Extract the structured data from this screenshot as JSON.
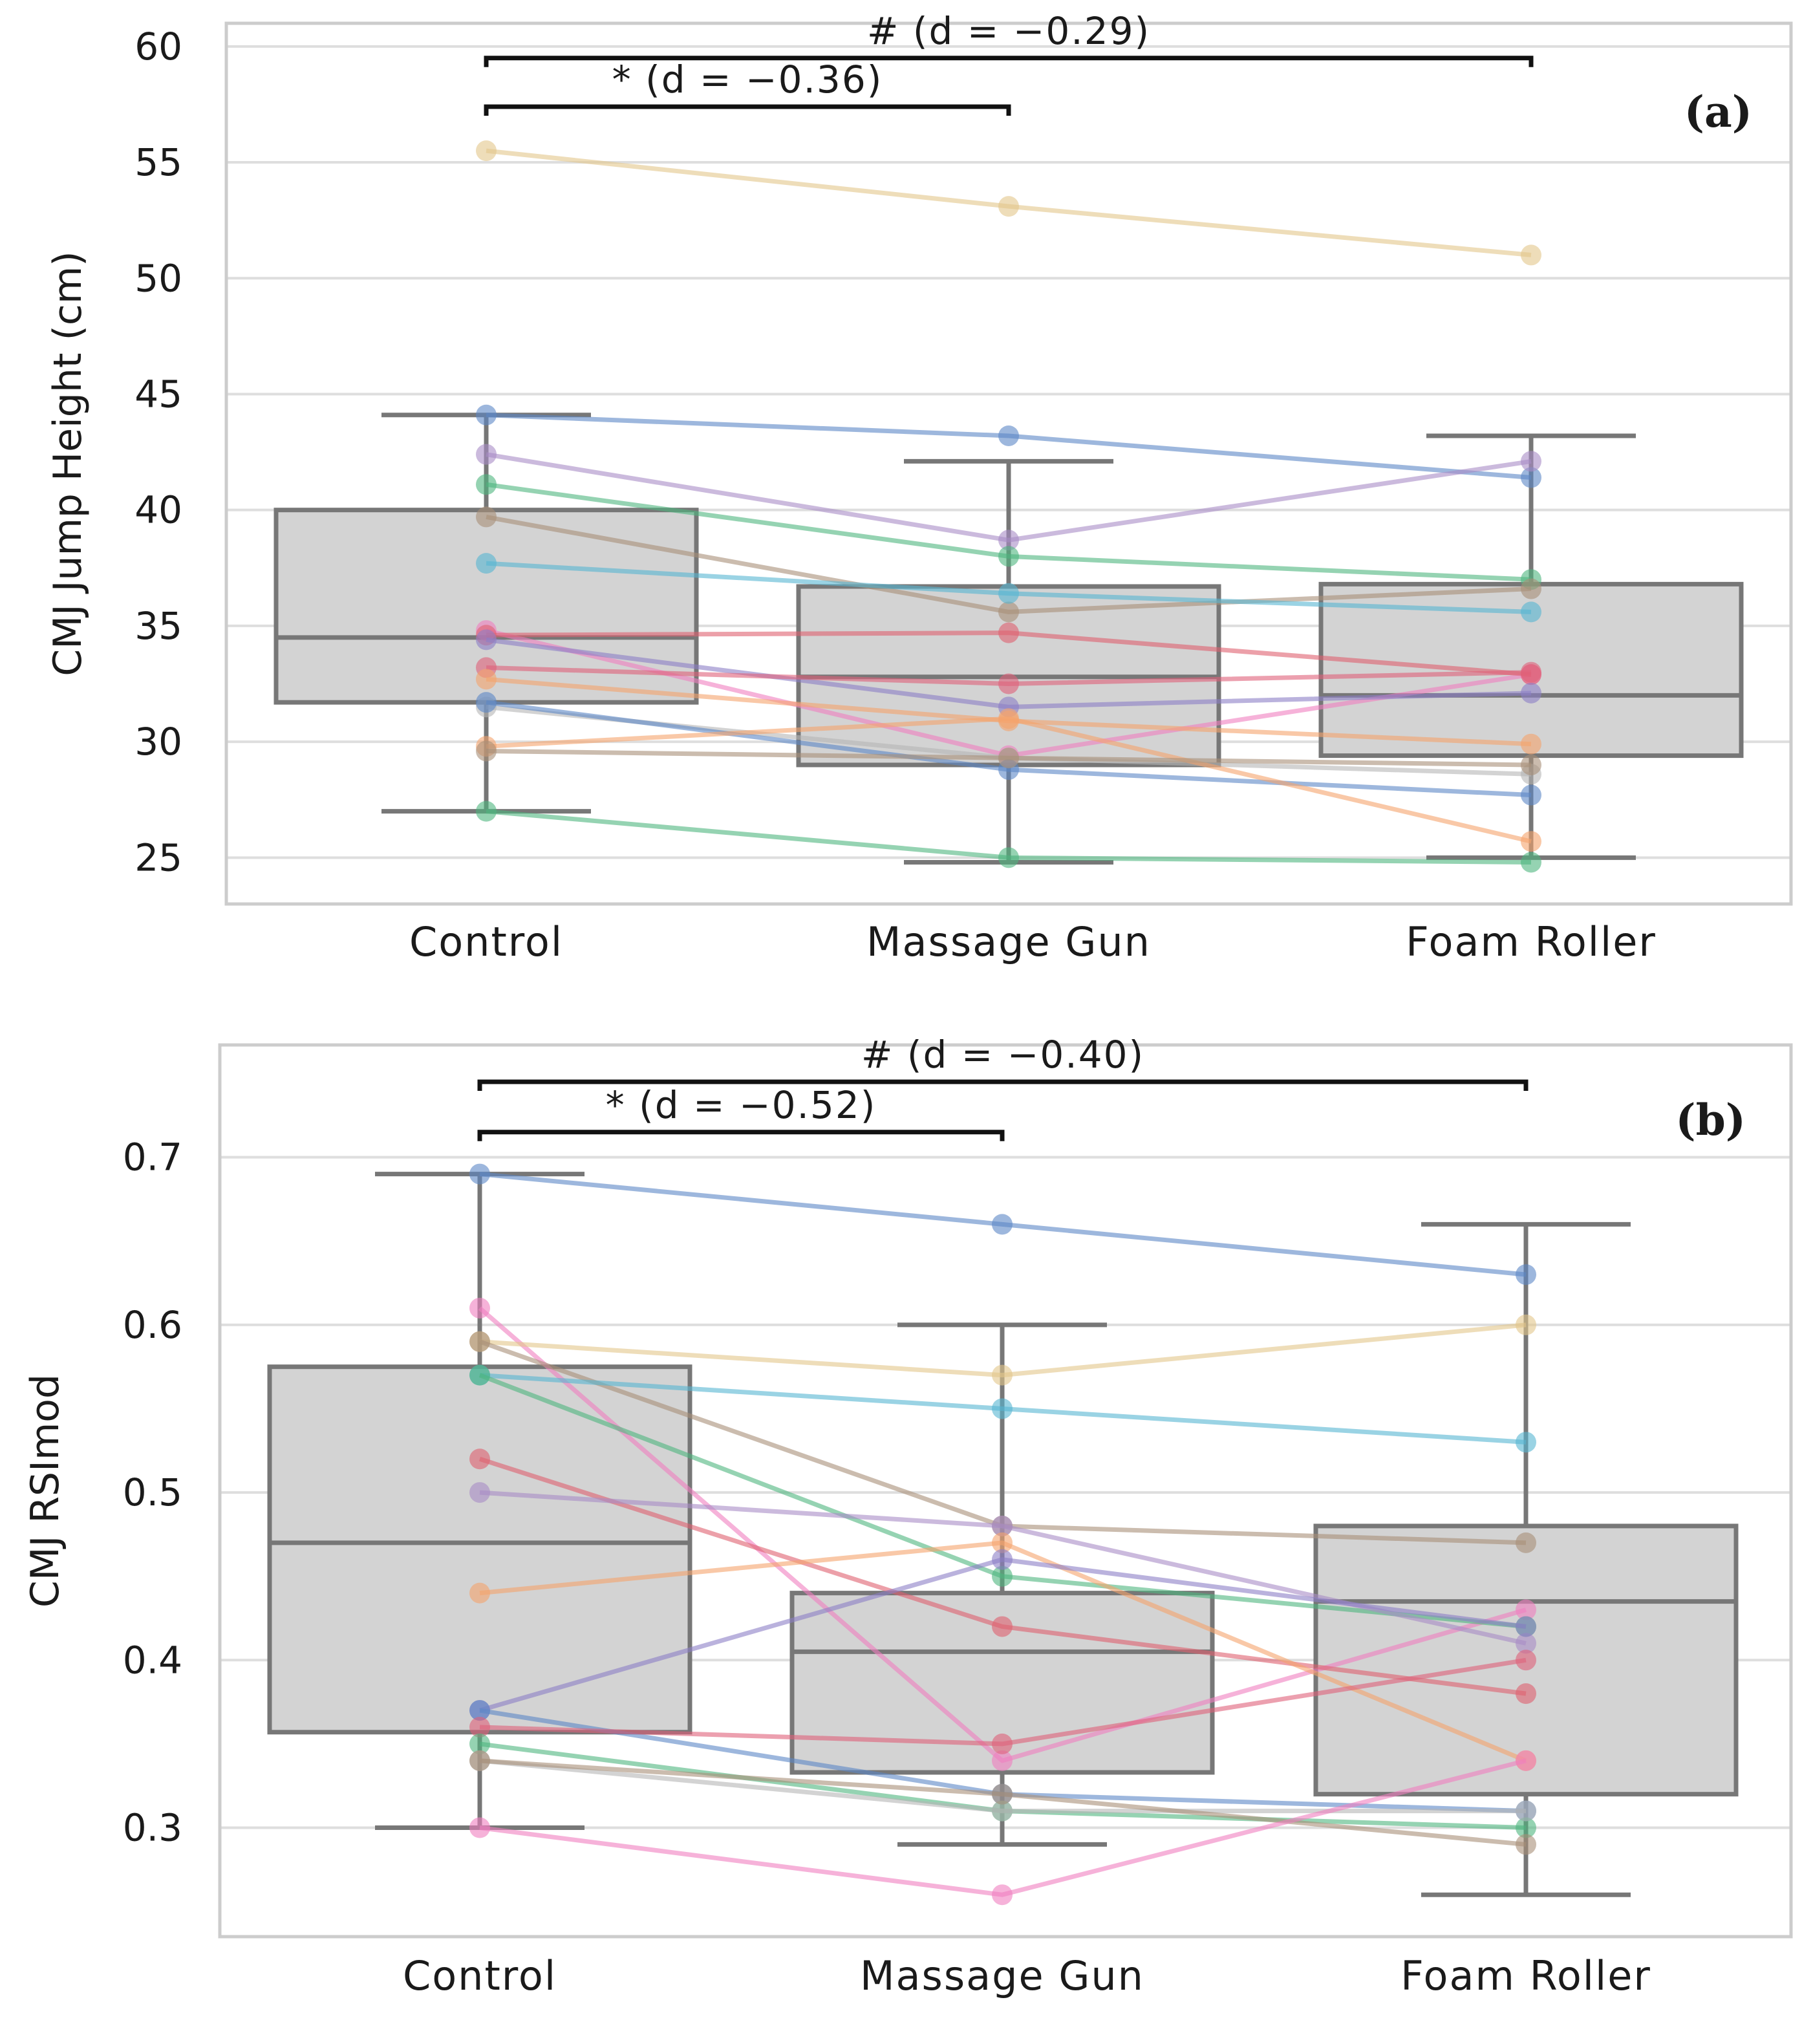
{
  "chart_data": [
    {
      "type": "box",
      "panel_label": "(a)",
      "xlabel": "",
      "ylabel": "CMJ Jump Height (cm)",
      "categories": [
        "Control",
        "Massage Gun",
        "Foam Roller"
      ],
      "ylim": [
        23.0,
        61.0
      ],
      "yticks": [
        25,
        30,
        35,
        40,
        45,
        50,
        55,
        60
      ],
      "grid": true,
      "boxes": [
        {
          "category": "Control",
          "whisker_low": 27.0,
          "q1": 31.7,
          "median": 34.5,
          "q3": 40.0,
          "whisker_high": 44.1
        },
        {
          "category": "Massage Gun",
          "whisker_low": 24.8,
          "q1": 29.0,
          "median": 32.8,
          "q3": 36.7,
          "whisker_high": 42.1
        },
        {
          "category": "Foam Roller",
          "whisker_low": 25.0,
          "q1": 29.4,
          "median": 32.0,
          "q3": 36.8,
          "whisker_high": 43.2
        }
      ],
      "subjects": [
        {
          "color": "#e2c78a",
          "values": [
            55.5,
            53.1,
            51.0
          ]
        },
        {
          "color": "#5b87c7",
          "values": [
            44.1,
            43.2,
            41.4
          ]
        },
        {
          "color": "#a98cc7",
          "values": [
            42.4,
            38.7,
            42.1
          ]
        },
        {
          "color": "#4fb57e",
          "values": [
            41.1,
            38.0,
            37.0
          ]
        },
        {
          "color": "#a88f78",
          "values": [
            39.7,
            35.6,
            36.6
          ]
        },
        {
          "color": "#57b5d2",
          "values": [
            37.7,
            36.4,
            35.6
          ]
        },
        {
          "color": "#f07ec0",
          "values": [
            34.8,
            29.4,
            32.9
          ]
        },
        {
          "color": "#e06070",
          "values": [
            34.6,
            34.7,
            32.9
          ]
        },
        {
          "color": "#8c7fc7",
          "values": [
            34.4,
            31.5,
            32.1
          ]
        },
        {
          "color": "#e0607a",
          "values": [
            33.2,
            32.5,
            33.0
          ]
        },
        {
          "color": "#f5a36c",
          "values": [
            32.7,
            30.9,
            29.9
          ]
        },
        {
          "color": "#b5b5b5",
          "values": [
            31.5,
            29.3,
            28.6
          ]
        },
        {
          "color": "#5b87c7",
          "values": [
            31.7,
            28.8,
            27.7
          ]
        },
        {
          "color": "#f5a36c",
          "values": [
            29.8,
            31.0,
            25.7
          ]
        },
        {
          "color": "#a88f78",
          "values": [
            29.6,
            29.3,
            29.0
          ]
        },
        {
          "color": "#4fb57e",
          "values": [
            27.0,
            25.0,
            24.8
          ]
        }
      ],
      "annotations": [
        {
          "text": "# (d = −0.29)",
          "from": "Control",
          "to": "Foam Roller",
          "y": 59.5
        },
        {
          "text": "* (d = −0.36)",
          "from": "Control",
          "to": "Massage Gun",
          "y": 57.4
        }
      ]
    },
    {
      "type": "box",
      "panel_label": "(b)",
      "xlabel": "",
      "ylabel": "CMJ RSImod",
      "categories": [
        "Control",
        "Massage Gun",
        "Foam Roller"
      ],
      "ylim": [
        0.235,
        0.767
      ],
      "yticks": [
        0.3,
        0.4,
        0.5,
        0.6,
        0.7
      ],
      "grid": true,
      "boxes": [
        {
          "category": "Control",
          "whisker_low": 0.3,
          "q1": 0.357,
          "median": 0.47,
          "q3": 0.575,
          "whisker_high": 0.69
        },
        {
          "category": "Massage Gun",
          "whisker_low": 0.29,
          "q1": 0.333,
          "median": 0.405,
          "q3": 0.44,
          "whisker_high": 0.6
        },
        {
          "category": "Foam Roller",
          "whisker_low": 0.26,
          "q1": 0.32,
          "median": 0.435,
          "q3": 0.48,
          "whisker_high": 0.66
        }
      ],
      "subjects": [
        {
          "color": "#5b87c7",
          "values": [
            0.69,
            0.66,
            0.63
          ]
        },
        {
          "color": "#f07ec0",
          "values": [
            0.61,
            0.34,
            0.43
          ]
        },
        {
          "color": "#e2c78a",
          "values": [
            0.59,
            0.57,
            0.6
          ]
        },
        {
          "color": "#a88f78",
          "values": [
            0.59,
            0.48,
            0.47
          ]
        },
        {
          "color": "#57b5d2",
          "values": [
            0.57,
            0.55,
            0.53
          ]
        },
        {
          "color": "#4fb57e",
          "values": [
            0.57,
            0.45,
            0.42
          ]
        },
        {
          "color": "#e06070",
          "values": [
            0.52,
            0.42,
            0.38
          ]
        },
        {
          "color": "#a98cc7",
          "values": [
            0.5,
            0.48,
            0.41
          ]
        },
        {
          "color": "#f5a36c",
          "values": [
            0.44,
            0.47,
            0.34
          ]
        },
        {
          "color": "#8c7fc7",
          "values": [
            0.37,
            0.46,
            0.42
          ]
        },
        {
          "color": "#5b87c7",
          "values": [
            0.37,
            0.32,
            0.31
          ]
        },
        {
          "color": "#e0607a",
          "values": [
            0.36,
            0.35,
            0.4
          ]
        },
        {
          "color": "#4fb57e",
          "values": [
            0.35,
            0.31,
            0.3
          ]
        },
        {
          "color": "#b5b5b5",
          "values": [
            0.34,
            0.31,
            0.31
          ]
        },
        {
          "color": "#a88f78",
          "values": [
            0.34,
            0.32,
            0.29
          ]
        },
        {
          "color": "#f07ec0",
          "values": [
            0.3,
            0.26,
            0.34
          ]
        }
      ],
      "annotations": [
        {
          "text": "# (d = −0.40)",
          "from": "Control",
          "to": "Foam Roller",
          "y": 0.745
        },
        {
          "text": "* (d = −0.52)",
          "from": "Control",
          "to": "Massage Gun",
          "y": 0.715
        }
      ]
    }
  ]
}
